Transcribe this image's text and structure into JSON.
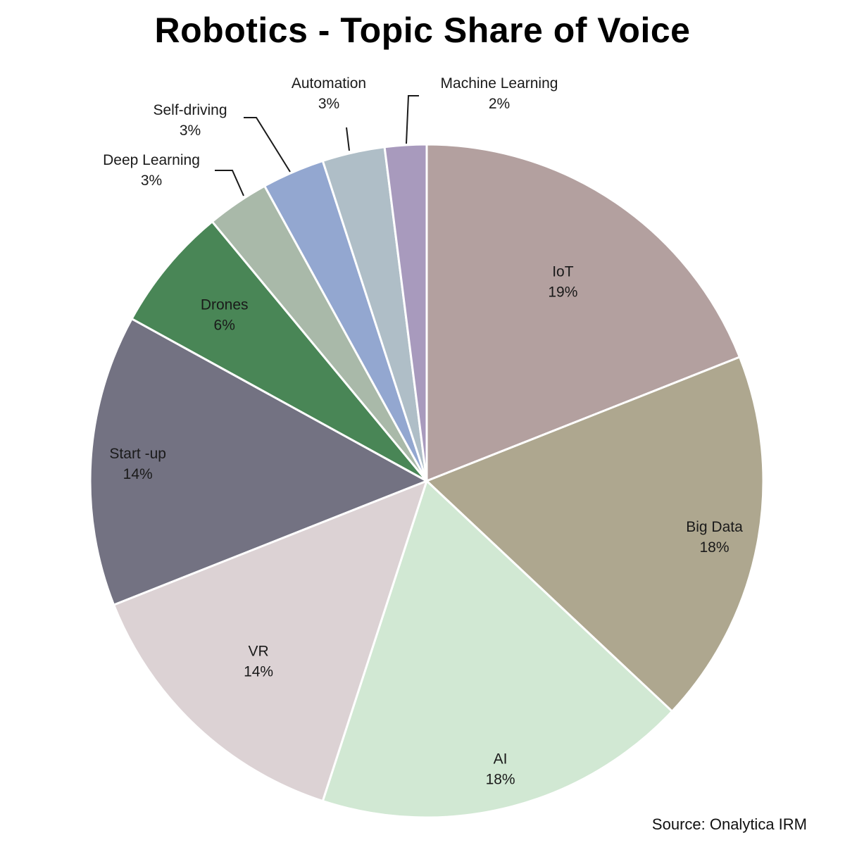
{
  "chart_data": {
    "type": "pie",
    "title": "Robotics - Topic Share of Voice",
    "source": "Source: Onalytica IRM",
    "start_angle_deg": 0,
    "direction": "clockwise",
    "slices": [
      {
        "label": "IoT",
        "value": 19,
        "value_label": "19%",
        "color": "#b3a09f",
        "label_mode": "inside"
      },
      {
        "label": "Big Data",
        "value": 18,
        "value_label": "18%",
        "color": "#aea78f",
        "label_mode": "inside"
      },
      {
        "label": "AI",
        "value": 18,
        "value_label": "18%",
        "color": "#d1e8d3",
        "label_mode": "inside"
      },
      {
        "label": "VR",
        "value": 14,
        "value_label": "14%",
        "color": "#dcd2d4",
        "label_mode": "inside"
      },
      {
        "label": "Start -up",
        "value": 14,
        "value_label": "14%",
        "color": "#737282",
        "label_mode": "inside"
      },
      {
        "label": "Drones",
        "value": 6,
        "value_label": "6%",
        "color": "#498656",
        "label_mode": "inside"
      },
      {
        "label": "Deep Learning",
        "value": 3,
        "value_label": "3%",
        "color": "#a9b9a9",
        "label_mode": "callout"
      },
      {
        "label": "Self-driving",
        "value": 3,
        "value_label": "3%",
        "color": "#93a7d0",
        "label_mode": "callout"
      },
      {
        "label": "Automation",
        "value": 3,
        "value_label": "3%",
        "color": "#afbec7",
        "label_mode": "callout"
      },
      {
        "label": "Machine Learning",
        "value": 2,
        "value_label": "2%",
        "color": "#a89abd",
        "label_mode": "callout"
      }
    ]
  }
}
